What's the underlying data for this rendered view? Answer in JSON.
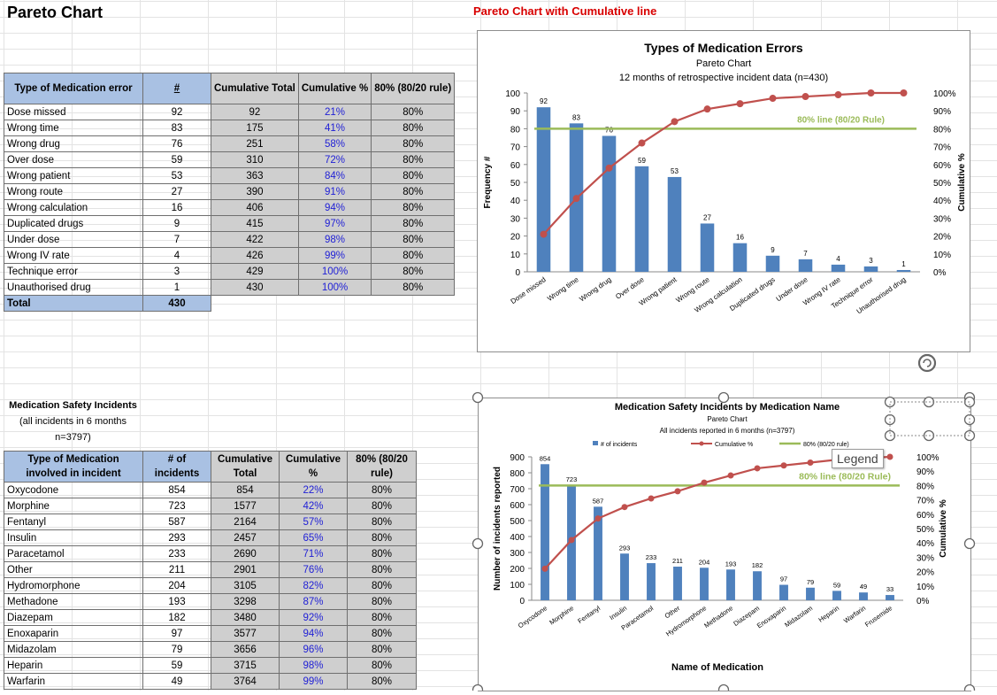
{
  "sheet": {
    "title": "Pareto Chart",
    "chart_section_title": "Pareto Chart with Cumulative line"
  },
  "table1": {
    "headers": [
      "Type of Medication error",
      "#",
      "Cumulative Total",
      "Cumulative %",
      "80% (80/20 rule)"
    ],
    "rows": [
      [
        "Dose missed",
        "92",
        "92",
        "21%",
        "80%"
      ],
      [
        "Wrong time",
        "83",
        "175",
        "41%",
        "80%"
      ],
      [
        "Wrong drug",
        "76",
        "251",
        "58%",
        "80%"
      ],
      [
        "Over dose",
        "59",
        "310",
        "72%",
        "80%"
      ],
      [
        "Wrong patient",
        "53",
        "363",
        "84%",
        "80%"
      ],
      [
        "Wrong route",
        "27",
        "390",
        "91%",
        "80%"
      ],
      [
        "Wrong calculation",
        "16",
        "406",
        "94%",
        "80%"
      ],
      [
        "Duplicated drugs",
        "9",
        "415",
        "97%",
        "80%"
      ],
      [
        "Under dose",
        "7",
        "422",
        "98%",
        "80%"
      ],
      [
        "Wrong IV rate",
        "4",
        "426",
        "99%",
        "80%"
      ],
      [
        "Technique error",
        "3",
        "429",
        "100%",
        "80%"
      ],
      [
        "Unauthorised drug",
        "1",
        "430",
        "100%",
        "80%"
      ]
    ],
    "total_label": "Total",
    "total_value": "430"
  },
  "table2_caption": [
    "Medication Safety Incidents",
    "(all incidents in 6 months",
    "n=3797)"
  ],
  "table2": {
    "headers": [
      "Type of Medication involved in incident",
      "# of incidents",
      "Cumulative Total",
      "Cumulative %",
      "80% (80/20 rule)"
    ],
    "rows": [
      [
        "Oxycodone",
        "854",
        "854",
        "22%",
        "80%"
      ],
      [
        "Morphine",
        "723",
        "1577",
        "42%",
        "80%"
      ],
      [
        "Fentanyl",
        "587",
        "2164",
        "57%",
        "80%"
      ],
      [
        "Insulin",
        "293",
        "2457",
        "65%",
        "80%"
      ],
      [
        "Paracetamol",
        "233",
        "2690",
        "71%",
        "80%"
      ],
      [
        "Other",
        "211",
        "2901",
        "76%",
        "80%"
      ],
      [
        "Hydromorphone",
        "204",
        "3105",
        "82%",
        "80%"
      ],
      [
        "Methadone",
        "193",
        "3298",
        "87%",
        "80%"
      ],
      [
        "Diazepam",
        "182",
        "3480",
        "92%",
        "80%"
      ],
      [
        "Enoxaparin",
        "97",
        "3577",
        "94%",
        "80%"
      ],
      [
        "Midazolam",
        "79",
        "3656",
        "96%",
        "80%"
      ],
      [
        "Heparin",
        "59",
        "3715",
        "98%",
        "80%"
      ],
      [
        "Warfarin",
        "49",
        "3764",
        "99%",
        "80%"
      ]
    ]
  },
  "chart_data": [
    {
      "type": "bar",
      "title": "Types of Medication Errors",
      "subtitle": [
        "Pareto Chart",
        "12 months of retrospective incident data  (n=430)"
      ],
      "ylabel": "Frequency #",
      "y2label": "Cumulative %",
      "ylim": [
        0,
        100
      ],
      "yticks": [
        "0",
        "10",
        "20",
        "30",
        "40",
        "50",
        "60",
        "70",
        "80",
        "90",
        "100"
      ],
      "y2ticks": [
        "0%",
        "10%",
        "20%",
        "30%",
        "40%",
        "50%",
        "60%",
        "70%",
        "80%",
        "90%",
        "100%"
      ],
      "categories": [
        "Dose missed",
        "Wrong time",
        "Wrong drug",
        "Over dose",
        "Wrong patient",
        "Wrong route",
        "Wrong calculation",
        "Duplicated drugs",
        "Under dose",
        "Wrong IV rate",
        "Technique error",
        "Unauthorised drug"
      ],
      "values": [
        92,
        83,
        76,
        59,
        53,
        27,
        16,
        9,
        7,
        4,
        3,
        1
      ],
      "cumulative_pct": [
        21,
        41,
        58,
        72,
        84,
        91,
        94,
        97,
        98,
        99,
        100,
        100
      ],
      "threshold_pct": 80,
      "threshold_label": "80% line (80/20 Rule)",
      "colors": {
        "bar": "#4f81bd",
        "line": "#c0504d",
        "threshold": "#9bbb59"
      }
    },
    {
      "type": "bar",
      "title": "Medication Safety Incidents by Medication Name",
      "subtitle": [
        "Pareto Chart",
        "All incidents reported in 6 months (n=3797)"
      ],
      "legend": [
        "# of incidents",
        "Cumulative %",
        "80% (80/20 rule)"
      ],
      "legend_tooltip": "Legend",
      "ylabel": "Number of incidents reported",
      "y2label": "Cumulative %",
      "xlabel": "Name of Medication",
      "ylim": [
        0,
        900
      ],
      "yticks": [
        "0",
        "100",
        "200",
        "300",
        "400",
        "500",
        "600",
        "700",
        "800",
        "900"
      ],
      "y2ticks": [
        "0%",
        "10%",
        "20%",
        "30%",
        "40%",
        "50%",
        "60%",
        "70%",
        "80%",
        "90%",
        "100%"
      ],
      "categories": [
        "Oxycodone",
        "Morphine",
        "Fentanyl",
        "Insulin",
        "Paracetamol",
        "Other",
        "Hydromorphone",
        "Methadone",
        "Diazepam",
        "Enoxaparin",
        "Midazolam",
        "Heparin",
        "Warfarin",
        "Frusemide"
      ],
      "values": [
        854,
        723,
        587,
        293,
        233,
        211,
        204,
        193,
        182,
        97,
        79,
        59,
        49,
        33
      ],
      "cumulative_pct": [
        22,
        42,
        57,
        65,
        71,
        76,
        82,
        87,
        92,
        94,
        96,
        98,
        99,
        100
      ],
      "threshold_pct": 80,
      "threshold_label": "80% line (80/20 Rule)",
      "colors": {
        "bar": "#4f81bd",
        "line": "#c0504d",
        "threshold": "#9bbb59"
      }
    }
  ]
}
